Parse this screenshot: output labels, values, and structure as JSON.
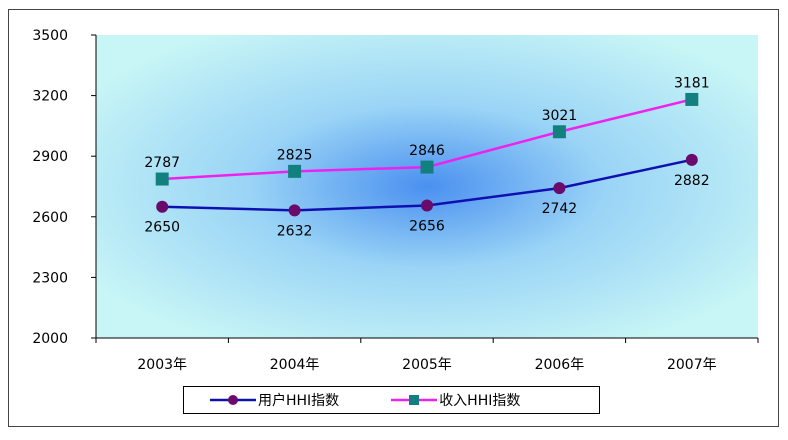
{
  "chart_data": {
    "type": "line",
    "categories": [
      "2003年",
      "2004年",
      "2005年",
      "2006年",
      "2007年"
    ],
    "series": [
      {
        "name": "用户HHI指数",
        "values": [
          2650,
          2632,
          2656,
          2742,
          2882
        ],
        "color": "#1010b0",
        "marker": "circle",
        "marker_color": "#6a0a6a"
      },
      {
        "name": "收入HHI指数",
        "values": [
          2787,
          2825,
          2846,
          3021,
          3181
        ],
        "color": "#ee22ee",
        "marker": "square",
        "marker_color": "#138080"
      }
    ],
    "ylim": [
      2000,
      3500
    ],
    "yticks": [
      2000,
      2300,
      2600,
      2900,
      3200,
      3500
    ],
    "grid": false,
    "legend": "bottom",
    "plot_background": [
      "#4a90f0",
      "#c8f6f6"
    ]
  }
}
